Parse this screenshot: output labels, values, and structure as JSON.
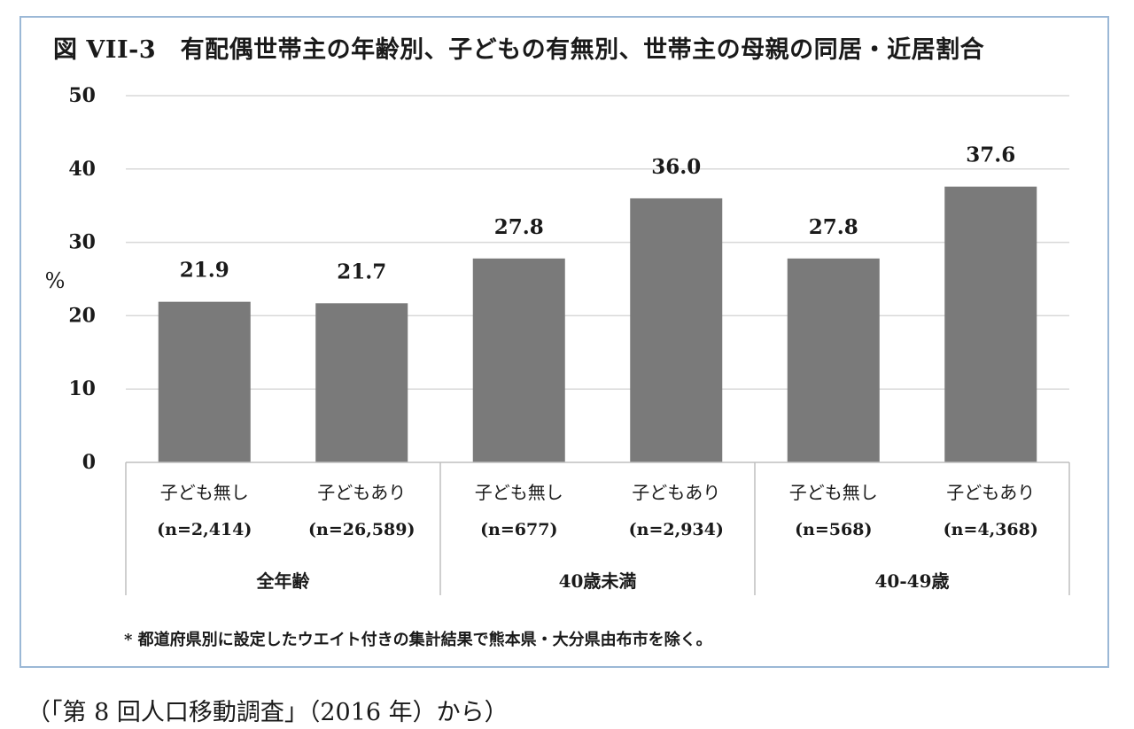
{
  "title": "図 VII-3　有配偶世帯主の年齢別、子どもの有無別、世帯主の母親の同居・近居割合",
  "footnote": "* 都道府県別に設定したウエイト付きの集計結果で熊本県・大分県由布市を除く。",
  "source": "（「第 8 回人口移動調査」（2016 年）から）",
  "colors": {
    "bar": "#7a7a7a",
    "grid": "#d9d9d9",
    "frame_border": "#9bb8d6",
    "axis_line": "#bfbfbf"
  },
  "chart_data": {
    "type": "bar",
    "ylabel": "%",
    "ylim": [
      0,
      50
    ],
    "yticks": [
      0,
      10,
      20,
      30,
      40,
      50
    ],
    "grid": true,
    "categories": [
      {
        "label": "子ども無し",
        "n": "(n=2,414)",
        "group": "全年齢"
      },
      {
        "label": "子どもあり",
        "n": "(n=26,589)",
        "group": "全年齢"
      },
      {
        "label": "子ども無し",
        "n": "(n=677)",
        "group": "40歳未満"
      },
      {
        "label": "子どもあり",
        "n": "(n=2,934)",
        "group": "40歳未満"
      },
      {
        "label": "子ども無し",
        "n": "(n=568)",
        "group": "40-49歳"
      },
      {
        "label": "子どもあり",
        "n": "(n=4,368)",
        "group": "40-49歳"
      }
    ],
    "groups": [
      "全年齢",
      "40歳未満",
      "40-49歳"
    ],
    "values": [
      21.9,
      21.7,
      27.8,
      36.0,
      27.8,
      37.6
    ],
    "data_labels": [
      "21.9",
      "21.7",
      "27.8",
      "36.0",
      "27.8",
      "37.6"
    ]
  }
}
